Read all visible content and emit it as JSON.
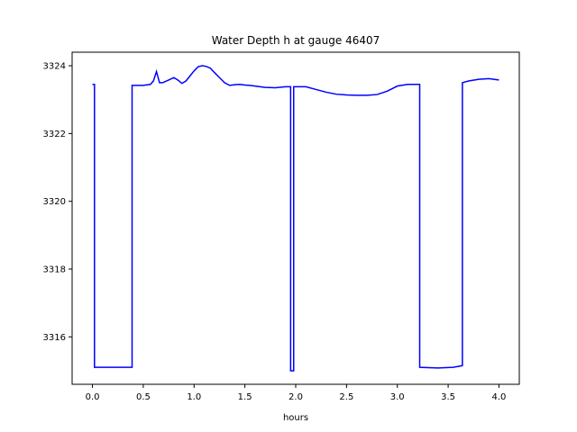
{
  "chart_data": {
    "type": "line",
    "title": "Water Depth h at gauge 46407",
    "xlabel": "hours",
    "ylabel": "",
    "xlim": [
      -0.2,
      4.2
    ],
    "ylim": [
      3314.6,
      3324.4
    ],
    "xticks": [
      "0.0",
      "0.5",
      "1.0",
      "1.5",
      "2.0",
      "2.5",
      "3.0",
      "3.5",
      "4.0"
    ],
    "yticks": [
      "3316",
      "3318",
      "3320",
      "3322",
      "3324"
    ],
    "xtick_values": [
      0.0,
      0.5,
      1.0,
      1.5,
      2.0,
      2.5,
      3.0,
      3.5,
      4.0
    ],
    "ytick_values": [
      3316,
      3318,
      3320,
      3322,
      3324
    ],
    "grid": false,
    "series": [
      {
        "color": "#0000ff",
        "x": [
          0.0,
          0.02,
          0.02,
          0.2,
          0.39,
          0.39,
          0.5,
          0.57,
          0.6,
          0.63,
          0.66,
          0.69,
          0.75,
          0.8,
          0.84,
          0.88,
          0.92,
          0.96,
          1.0,
          1.04,
          1.08,
          1.12,
          1.16,
          1.2,
          1.25,
          1.3,
          1.35,
          1.4,
          1.45,
          1.5,
          1.55,
          1.6,
          1.7,
          1.8,
          1.9,
          1.95,
          1.95,
          1.98,
          1.98,
          2.02,
          2.02,
          2.1,
          2.2,
          2.3,
          2.4,
          2.5,
          2.6,
          2.7,
          2.8,
          2.9,
          3.0,
          3.1,
          3.2,
          3.22,
          3.22,
          3.4,
          3.55,
          3.64,
          3.64,
          3.7,
          3.8,
          3.9,
          4.0
        ],
        "y": [
          3323.45,
          3323.45,
          3315.1,
          3315.1,
          3315.1,
          3323.42,
          3323.42,
          3323.45,
          3323.55,
          3323.83,
          3323.5,
          3323.5,
          3323.58,
          3323.65,
          3323.58,
          3323.48,
          3323.55,
          3323.7,
          3323.85,
          3323.97,
          3324.0,
          3323.98,
          3323.93,
          3323.8,
          3323.65,
          3323.5,
          3323.42,
          3323.44,
          3323.45,
          3323.43,
          3323.42,
          3323.4,
          3323.36,
          3323.35,
          3323.38,
          3323.38,
          3315.0,
          3315.0,
          3323.38,
          3323.38,
          3323.38,
          3323.38,
          3323.3,
          3323.22,
          3323.16,
          3323.14,
          3323.13,
          3323.13,
          3323.15,
          3323.25,
          3323.4,
          3323.45,
          3323.45,
          3323.45,
          3315.1,
          3315.08,
          3315.1,
          3315.15,
          3323.5,
          3323.55,
          3323.6,
          3323.62,
          3323.58
        ]
      }
    ]
  }
}
